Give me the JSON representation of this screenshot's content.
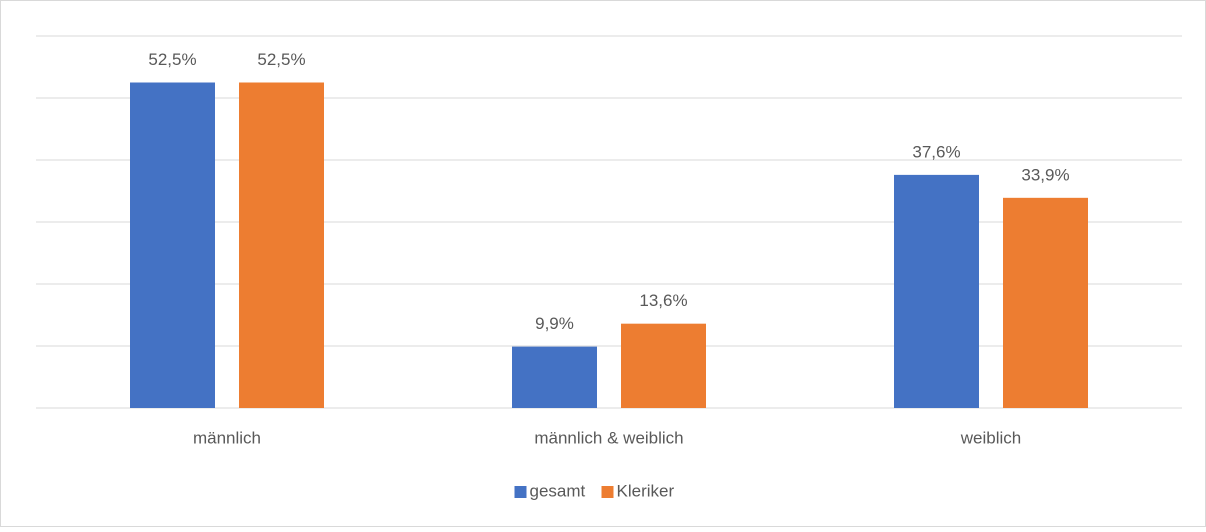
{
  "chart_data": {
    "type": "bar",
    "categories": [
      "männlich",
      "männlich & weiblich",
      "weiblich"
    ],
    "series": [
      {
        "name": "gesamt",
        "color": "#4472c4",
        "values": [
          52.5,
          9.9,
          37.6
        ],
        "value_labels": [
          "52,5%",
          "9,9%",
          "37,6%"
        ]
      },
      {
        "name": "Kleriker",
        "color": "#ed7d31",
        "values": [
          52.5,
          13.6,
          33.9
        ],
        "value_labels": [
          "52,5%",
          "13,6%",
          "33,9%"
        ]
      }
    ],
    "ylim": [
      0,
      60
    ],
    "yticks": [
      0,
      10,
      20,
      30,
      40,
      50,
      60
    ],
    "grid": true,
    "legend": "bottom"
  }
}
